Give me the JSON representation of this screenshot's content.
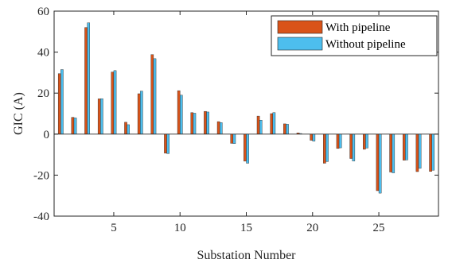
{
  "chart_data": {
    "type": "bar",
    "xlabel": "Substation Number",
    "ylabel": "GIC (A)",
    "ylim": [
      -40,
      60
    ],
    "xlim": [
      0.5,
      29.5
    ],
    "yticks": [
      -40,
      -20,
      0,
      20,
      40,
      60
    ],
    "xticks": [
      5,
      10,
      15,
      20,
      25
    ],
    "grid": false,
    "legend_position": "top-right",
    "categories": [
      1,
      2,
      3,
      4,
      5,
      6,
      7,
      8,
      9,
      10,
      11,
      12,
      13,
      14,
      15,
      16,
      17,
      18,
      19,
      20,
      21,
      22,
      23,
      24,
      25,
      26,
      27,
      28,
      29
    ],
    "series": [
      {
        "name": "With pipeline",
        "color": "#d95319",
        "values": [
          29.5,
          8.2,
          52,
          17.2,
          30.3,
          5.8,
          19.7,
          38.8,
          -9.3,
          21.2,
          10.5,
          11.1,
          6.1,
          -4.5,
          -13.2,
          8.8,
          10,
          5,
          0.6,
          -3,
          -14.2,
          -7,
          -11.9,
          -7.4,
          -27.6,
          -18.5,
          -12.7,
          -18.3,
          -18.2
        ]
      },
      {
        "name": "Without pipeline",
        "color": "#4dbeee",
        "values": [
          31.5,
          7.9,
          54.3,
          17.3,
          31,
          4.6,
          21,
          36.8,
          -9.5,
          19,
          10.2,
          10.8,
          5.6,
          -4.6,
          -14.2,
          6.8,
          10.5,
          4.8,
          0.3,
          -3.4,
          -13.4,
          -6.7,
          -13.1,
          -6.8,
          -28.8,
          -18.9,
          -12.6,
          -16.7,
          -17.6
        ]
      }
    ]
  }
}
